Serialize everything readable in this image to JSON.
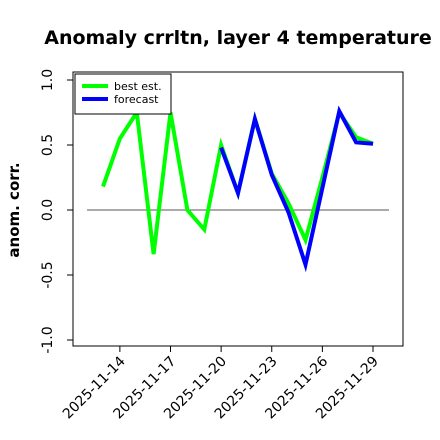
{
  "chart_data": {
    "type": "line",
    "title": "Anomaly crrltn, layer 4 temperature",
    "xlabel": "",
    "ylabel": "anom. corr.",
    "x_dates": [
      "2025-11-13",
      "2025-11-14",
      "2025-11-15",
      "2025-11-16",
      "2025-11-17",
      "2025-11-18",
      "2025-11-19",
      "2025-11-20",
      "2025-11-21",
      "2025-11-22",
      "2025-11-23",
      "2025-11-24",
      "2025-11-25",
      "2025-11-26",
      "2025-11-27",
      "2025-11-28",
      "2025-11-29"
    ],
    "x_tick_labels": [
      "2025-11-14",
      "2025-11-17",
      "2025-11-20",
      "2025-11-23",
      "2025-11-26",
      "2025-11-29"
    ],
    "x_tick_colors": [
      "#000000",
      "#000000",
      "#2e8b2e",
      "#000000",
      "#000000",
      "#000000"
    ],
    "ylim": [
      -1.0,
      1.0
    ],
    "y_ticks": [
      -1.0,
      -0.5,
      0.0,
      0.5,
      1.0
    ],
    "y_tick_labels": [
      "-1.0",
      "-0.5",
      "0.0",
      "0.5",
      "1.0"
    ],
    "reference_line": 0.0,
    "grid": false,
    "legend_position": "top-left",
    "series": [
      {
        "name": "best est.",
        "color": "#00ff00",
        "values": [
          0.18,
          0.55,
          0.75,
          -0.34,
          0.75,
          0.0,
          -0.15,
          0.5,
          0.13,
          0.7,
          0.28,
          0.05,
          -0.23,
          0.25,
          0.75,
          0.56,
          0.51
        ]
      },
      {
        "name": "forecast",
        "color": "#0000ff",
        "values": [
          null,
          null,
          null,
          null,
          null,
          null,
          null,
          0.48,
          0.13,
          0.7,
          0.27,
          -0.02,
          -0.42,
          0.17,
          0.76,
          0.52,
          0.51
        ]
      }
    ]
  }
}
